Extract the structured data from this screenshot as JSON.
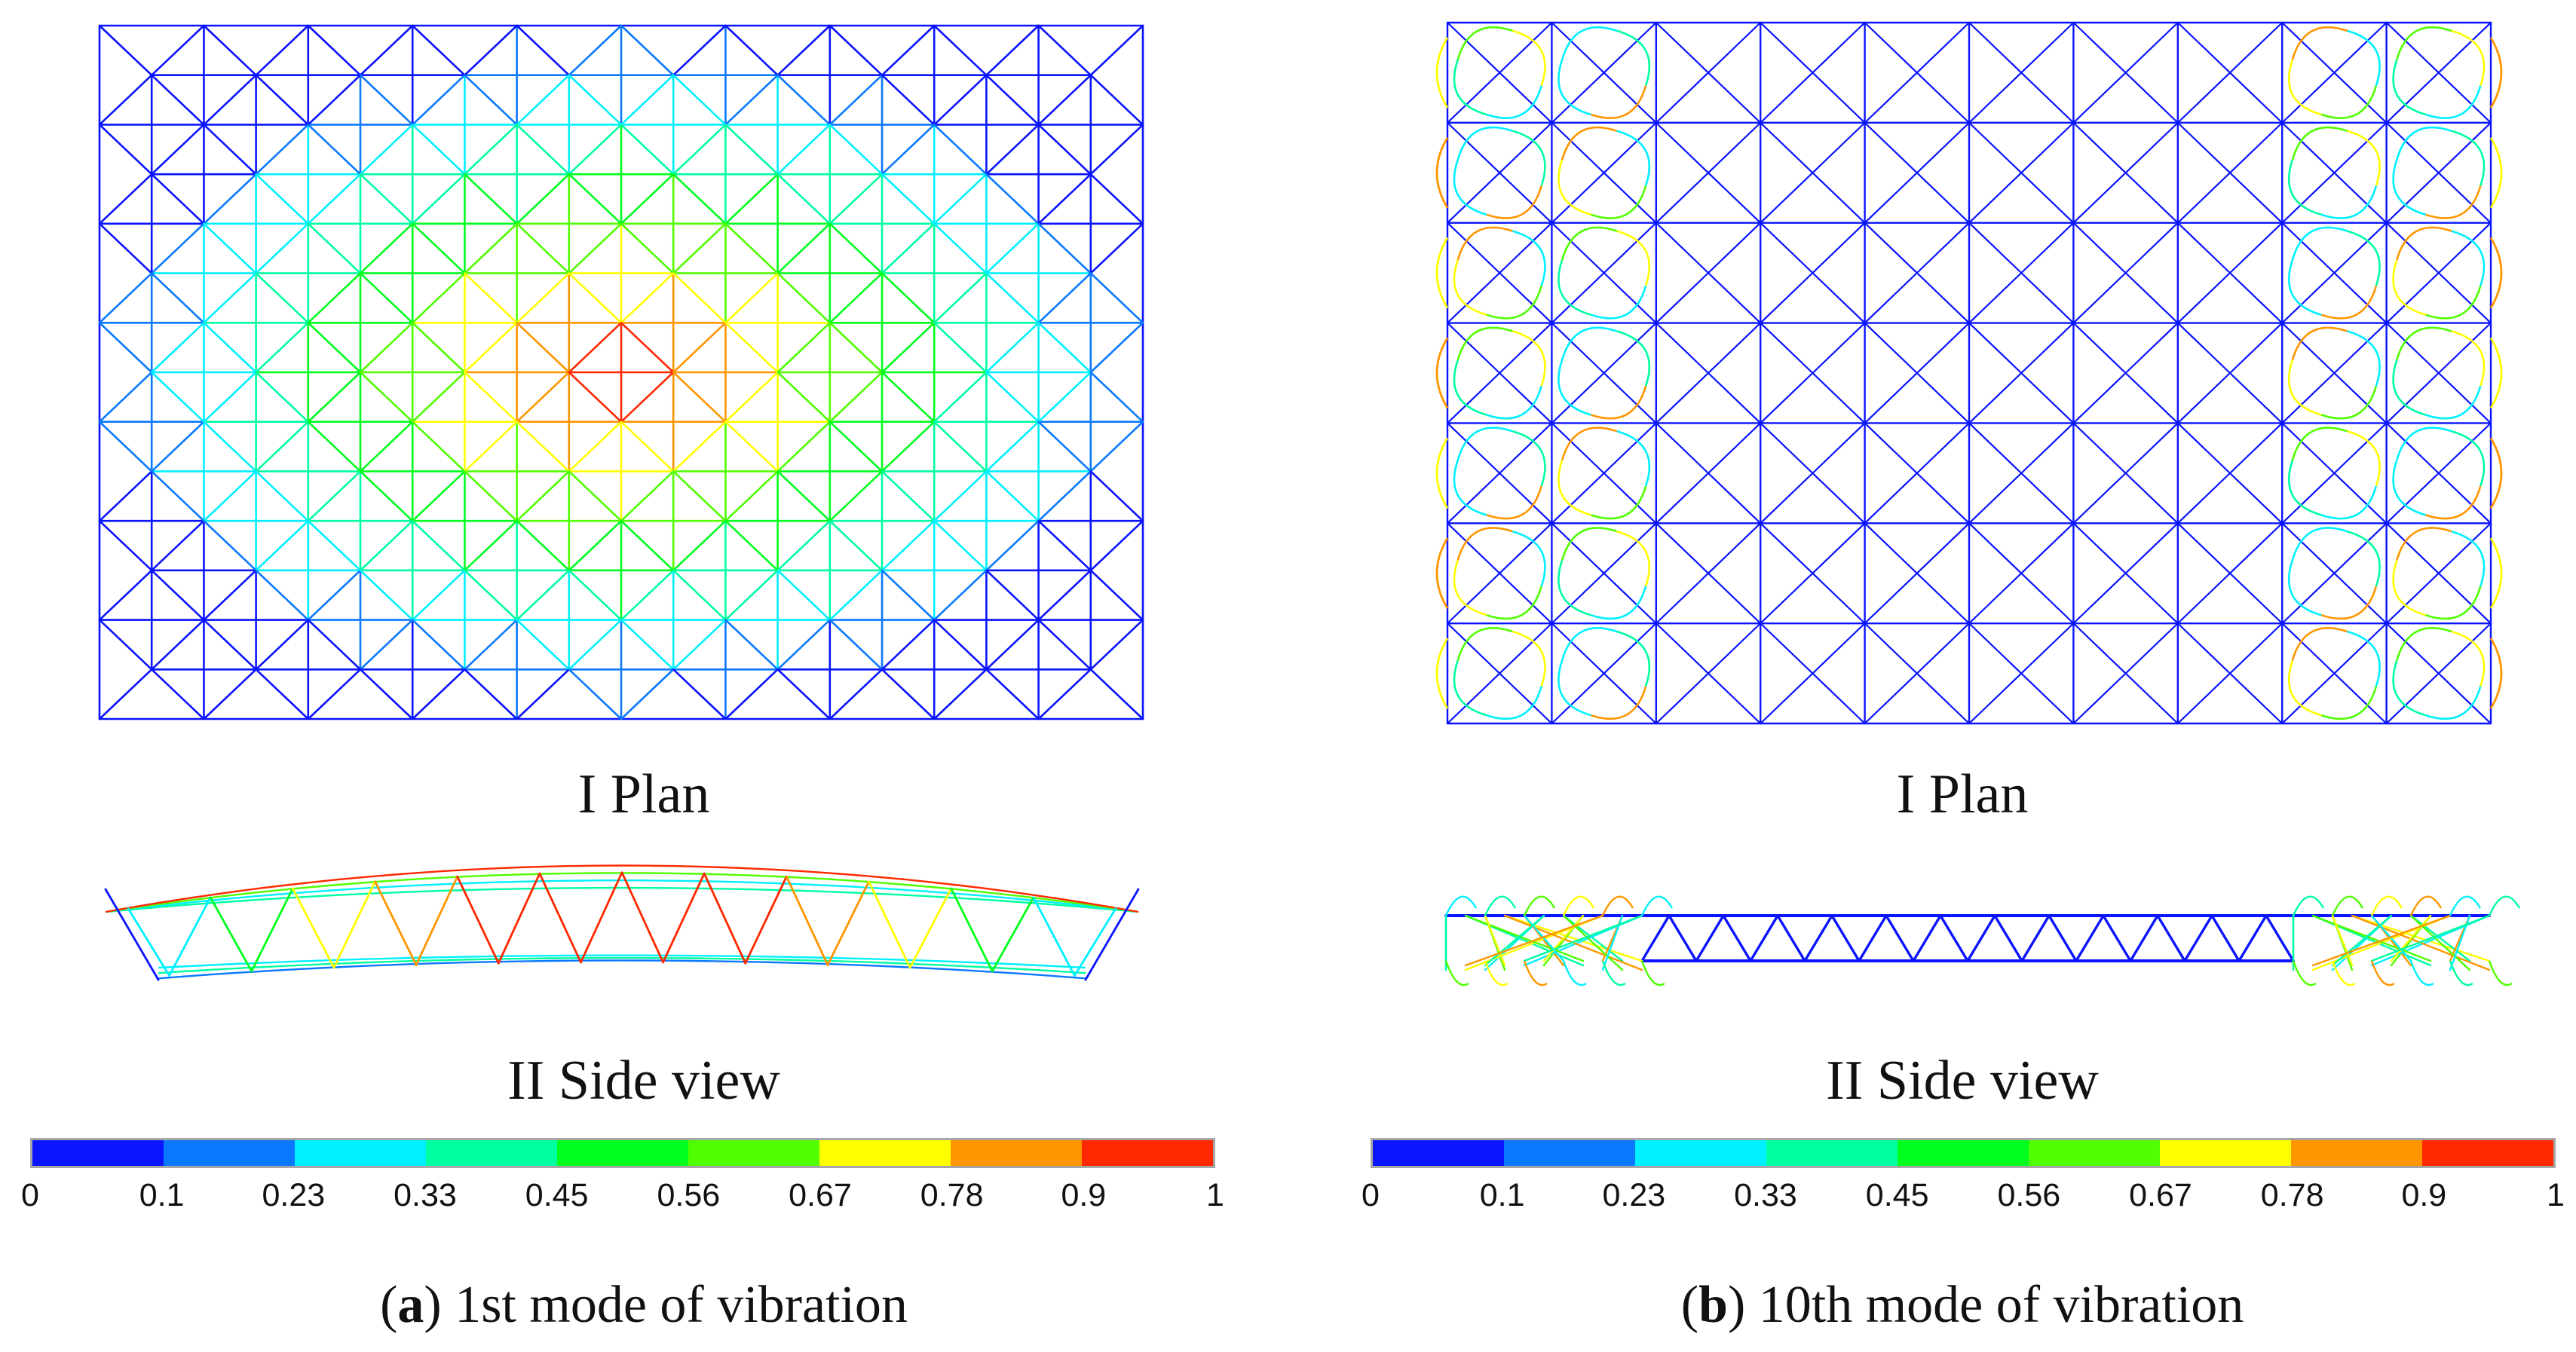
{
  "panels": [
    {
      "id": "a",
      "plan_label": "I Plan",
      "side_label": "II Side view",
      "caption_letter": "a",
      "caption_text": "1st mode of vibration"
    },
    {
      "id": "b",
      "plan_label": "I Plan",
      "side_label": "II Side view",
      "caption_letter": "b",
      "caption_text": "10th mode of vibration"
    }
  ],
  "colorbar": {
    "colors": [
      "#0a14ff",
      "#0a78ff",
      "#00f0ff",
      "#00ffa0",
      "#00ff1e",
      "#50ff00",
      "#ffff00",
      "#ff9600",
      "#ff2800"
    ],
    "ticks": [
      "0",
      "0.1",
      "0.23",
      "0.33",
      "0.45",
      "0.56",
      "0.67",
      "0.78",
      "0.9",
      "1"
    ]
  },
  "mesh": {
    "columns": 10,
    "rows": 7
  }
}
